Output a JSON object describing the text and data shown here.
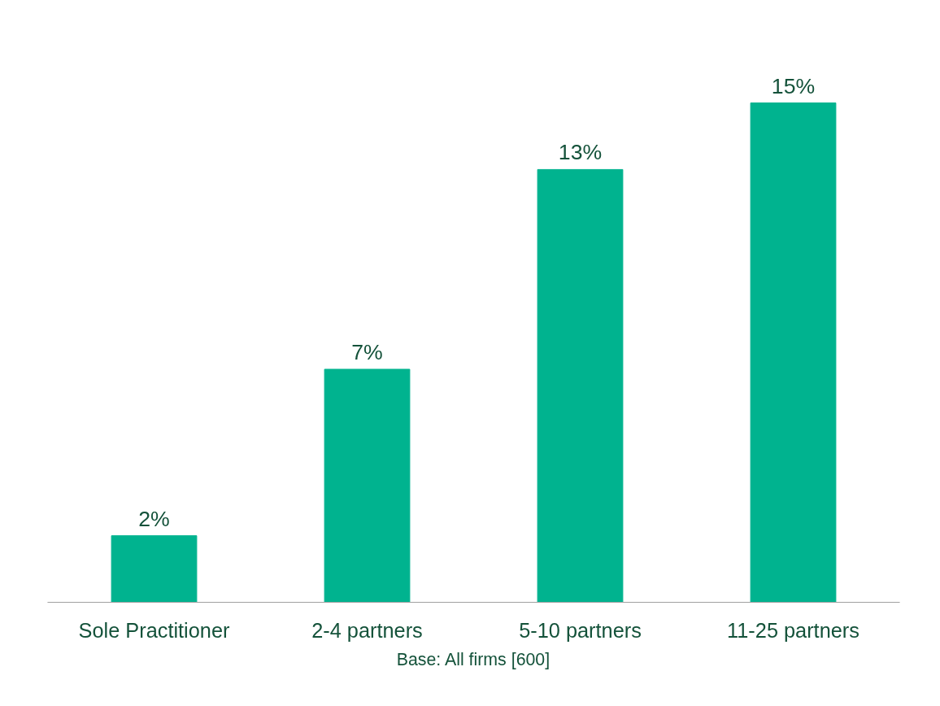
{
  "chart_data": {
    "type": "bar",
    "categories": [
      "Sole Practitioner",
      "2-4 partners",
      "5-10 partners",
      "11-25 partners"
    ],
    "values": [
      2,
      7,
      13,
      15
    ],
    "color": "#00b38f",
    "value_labels": [
      "2%",
      "7%",
      "13%",
      "15%"
    ],
    "annotations": [
      "Base: All firms [600]"
    ],
    "grid": false
  }
}
